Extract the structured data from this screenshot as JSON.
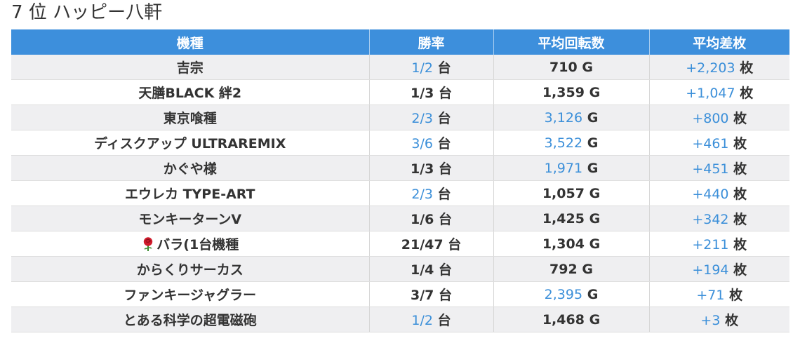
{
  "title": "7 位 ハッピー八軒",
  "table": {
    "headers": [
      "機種",
      "勝率",
      "平均回転数",
      "平均差枚"
    ],
    "unit_dai": "台",
    "unit_g": "G",
    "unit_mai": "枚",
    "rows": [
      {
        "name": "吉宗",
        "win": "1/2",
        "win_hl": true,
        "spins": "710",
        "spins_hl": false,
        "diff": "+2,203",
        "diff_hl": true
      },
      {
        "name": "天膳BLACK 絆2",
        "win": "1/3",
        "win_hl": false,
        "spins": "1,359",
        "spins_hl": false,
        "diff": "+1,047",
        "diff_hl": true
      },
      {
        "name": "東京喰種",
        "win": "2/3",
        "win_hl": true,
        "spins": "3,126",
        "spins_hl": true,
        "diff": "+800",
        "diff_hl": true
      },
      {
        "name": "ディスクアップ ULTRAREMIX",
        "win": "3/6",
        "win_hl": true,
        "spins": "3,522",
        "spins_hl": true,
        "diff": "+461",
        "diff_hl": true
      },
      {
        "name": "かぐや様",
        "win": "1/3",
        "win_hl": false,
        "spins": "1,971",
        "spins_hl": true,
        "diff": "+451",
        "diff_hl": true
      },
      {
        "name": "エウレカ TYPE-ART",
        "win": "2/3",
        "win_hl": true,
        "spins": "1,057",
        "spins_hl": false,
        "diff": "+440",
        "diff_hl": true
      },
      {
        "name": "モンキーターンV",
        "win": "1/6",
        "win_hl": false,
        "spins": "1,425",
        "spins_hl": false,
        "diff": "+342",
        "diff_hl": true
      },
      {
        "name": "バラ(1台機種",
        "icon": "rose-icon",
        "win": "21/47",
        "win_hl": false,
        "spins": "1,304",
        "spins_hl": false,
        "diff": "+211",
        "diff_hl": true
      },
      {
        "name": "からくりサーカス",
        "win": "1/4",
        "win_hl": false,
        "spins": "792",
        "spins_hl": false,
        "diff": "+194",
        "diff_hl": true
      },
      {
        "name": "ファンキージャグラー",
        "win": "3/7",
        "win_hl": false,
        "spins": "2,395",
        "spins_hl": true,
        "diff": "+71",
        "diff_hl": true
      },
      {
        "name": "とある科学の超電磁砲",
        "win": "1/2",
        "win_hl": true,
        "spins": "1,468",
        "spins_hl": false,
        "diff": "+3",
        "diff_hl": true
      }
    ]
  },
  "colors": {
    "header_bg": "#3d8fdc",
    "highlight": "#3b8fd9",
    "row_odd": "#efeff1",
    "row_even": "#ffffff",
    "text": "#333333"
  }
}
